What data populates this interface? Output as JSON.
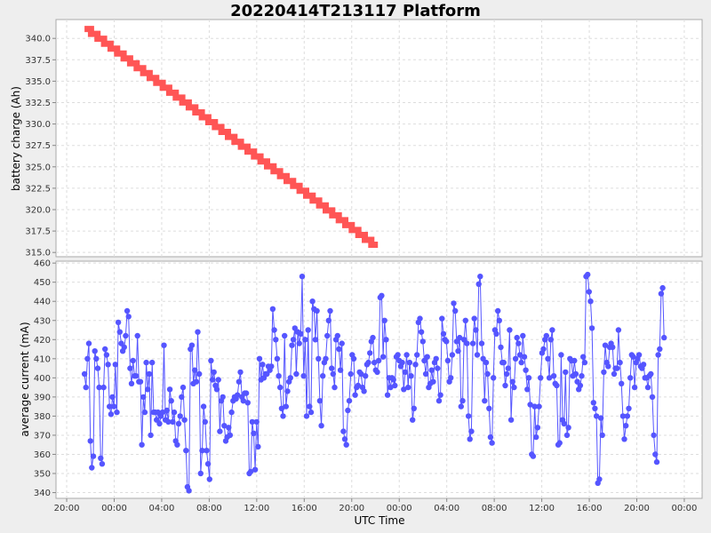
{
  "chart_data": [
    {
      "type": "line",
      "title": "20220414T213117 Platform",
      "ylabel": "battery charge (Ah)",
      "ylim": [
        314.5,
        342.2
      ],
      "yticks": [
        315.0,
        317.5,
        320.0,
        322.5,
        325.0,
        327.5,
        330.0,
        332.5,
        335.0,
        337.5,
        340.0
      ],
      "ytick_labels": [
        "315.0",
        "317.5",
        "320.0",
        "322.5",
        "325.0",
        "327.5",
        "330.0",
        "332.5",
        "335.0",
        "337.5",
        "340.0"
      ],
      "grid": true,
      "series_color": "#ff5555",
      "start_charge": 341.1,
      "end_charge": 315.9,
      "start_hours": 21.5,
      "end_hours": 46.2
    },
    {
      "type": "line",
      "xlabel": "UTC Time",
      "ylabel": "average current (mA)",
      "ylim": [
        337,
        461
      ],
      "yticks": [
        340,
        350,
        360,
        370,
        380,
        390,
        400,
        410,
        420,
        430,
        440,
        450,
        460
      ],
      "ytick_labels": [
        "340",
        "350",
        "360",
        "370",
        "380",
        "390",
        "400",
        "410",
        "420",
        "430",
        "440",
        "450",
        "460"
      ],
      "xticks_hours": [
        20,
        24,
        28,
        32,
        36,
        40,
        44,
        48,
        52,
        56,
        60,
        64,
        68,
        72
      ],
      "xtick_labels": [
        "20:00",
        "00:00",
        "04:00",
        "08:00",
        "12:00",
        "16:00",
        "20:00",
        "00:00",
        "04:00",
        "08:00",
        "12:00",
        "16:00",
        "20:00",
        "00:00"
      ],
      "xlim_hours": [
        19.1,
        73.5
      ],
      "grid": true,
      "series_color": "#5555ff",
      "marker": "circle",
      "start_hours": 21.5,
      "end_hours": 70.3,
      "values": [
        402,
        395,
        410,
        418,
        367,
        353,
        359,
        414,
        410,
        405,
        395,
        358,
        355,
        395,
        415,
        412,
        407,
        385,
        381,
        390,
        385,
        407,
        382,
        429,
        424,
        418,
        414,
        416,
        422,
        435,
        432,
        405,
        397,
        409,
        401,
        401,
        422,
        398,
        398,
        365,
        390,
        382,
        408,
        394,
        402,
        370,
        408,
        382,
        382,
        378,
        382,
        376,
        380,
        382,
        417,
        378,
        383,
        377,
        394,
        388,
        377,
        382,
        367,
        365,
        376,
        380,
        390,
        395,
        378,
        362,
        343,
        341,
        415,
        417,
        397,
        404,
        398,
        424,
        402,
        350,
        362,
        385,
        377,
        362,
        355,
        347,
        409,
        399,
        403,
        396,
        394,
        399,
        372,
        388,
        390,
        375,
        367,
        369,
        374,
        370,
        382,
        388,
        390,
        389,
        391,
        398,
        403,
        390,
        388,
        392,
        392,
        387,
        350,
        351,
        377,
        371,
        352,
        377,
        364,
        410,
        399,
        407,
        400,
        402,
        402,
        406,
        404,
        406,
        436,
        425,
        420,
        410,
        401,
        395,
        384,
        380,
        422,
        385,
        393,
        398,
        400,
        417,
        420,
        426,
        402,
        424,
        418,
        423,
        453,
        401,
        420,
        380,
        425,
        385,
        382,
        440,
        436,
        420,
        435,
        410,
        388,
        375,
        401,
        408,
        410,
        422,
        430,
        435,
        405,
        402,
        395,
        420,
        422,
        415,
        404,
        418,
        372,
        368,
        365,
        383,
        388,
        402,
        412,
        410,
        391,
        395,
        396,
        403,
        402,
        395,
        393,
        401,
        407,
        408,
        413,
        419,
        421,
        408,
        404,
        403,
        409,
        442,
        443,
        411,
        430,
        420,
        391,
        400,
        395,
        400,
        399,
        396,
        411,
        412,
        409,
        406,
        408,
        394,
        403,
        412,
        395,
        408,
        401,
        378,
        384,
        407,
        412,
        429,
        431,
        424,
        419,
        409,
        402,
        411,
        395,
        397,
        404,
        398,
        408,
        410,
        405,
        388,
        391,
        431,
        423,
        420,
        419,
        409,
        398,
        400,
        412,
        439,
        435,
        419,
        414,
        421,
        385,
        388,
        420,
        430,
        418,
        380,
        368,
        372,
        418,
        431,
        425,
        412,
        449,
        453,
        418,
        410,
        388,
        408,
        402,
        384,
        369,
        366,
        400,
        425,
        423,
        435,
        430,
        416,
        408,
        408,
        396,
        402,
        405,
        425,
        378,
        398,
        395,
        410,
        421,
        418,
        412,
        408,
        422,
        411,
        404,
        394,
        400,
        386,
        360,
        359,
        385,
        369,
        374,
        385,
        400,
        413,
        415,
        420,
        422,
        410,
        400,
        420,
        425,
        401,
        397,
        396,
        365,
        366,
        412,
        378,
        376,
        403,
        370,
        374,
        410,
        409,
        401,
        409,
        402,
        398,
        394,
        396,
        401,
        411,
        408,
        453,
        454,
        445,
        440,
        426,
        387,
        384,
        380,
        345,
        347,
        379,
        370,
        403,
        417,
        408,
        406,
        416,
        418,
        416,
        402,
        405,
        405,
        425,
        408,
        397,
        380,
        368,
        375,
        380,
        384,
        400,
        412,
        411,
        395,
        408,
        410,
        412,
        406,
        405,
        407,
        400,
        400,
        395,
        401,
        402,
        390,
        370,
        360,
        356,
        412,
        415,
        444,
        447,
        421
      ]
    }
  ]
}
